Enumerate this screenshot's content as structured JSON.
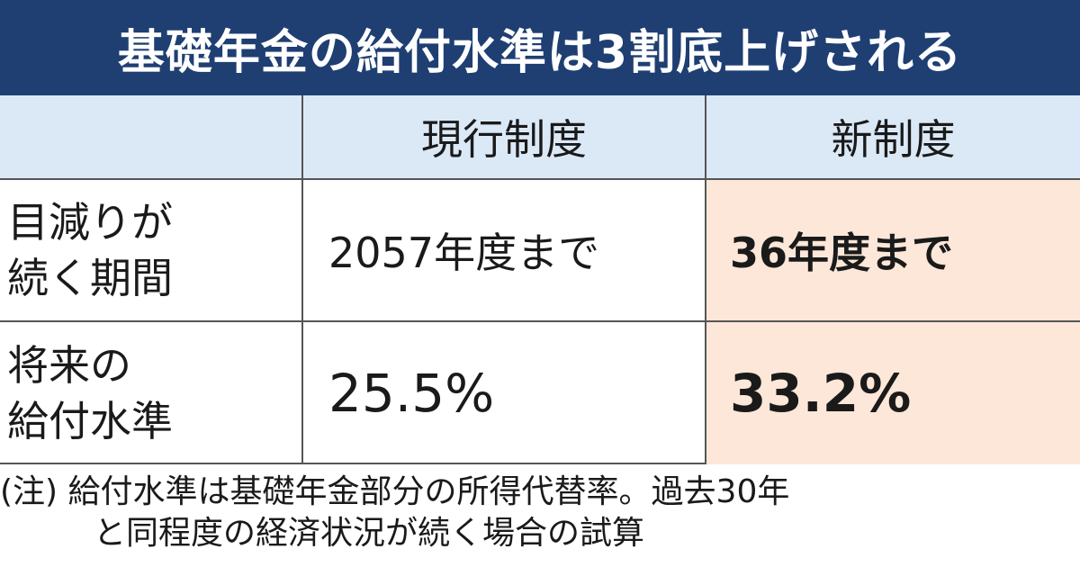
{
  "chart_data": {
    "type": "table",
    "title": "基礎年金の給付水準は3割底上げされる",
    "columns": [
      "",
      "現行制度",
      "新制度"
    ],
    "rows": [
      {
        "label": "目減りが\n続く期間",
        "current": "2057年度まで",
        "new": "36年度まで"
      },
      {
        "label": "将来の\n給付水準",
        "current": "25.5%",
        "new": "33.2%"
      }
    ],
    "note_line1": "(注) 給付水準は基礎年金部分の所得代替率。過去30年",
    "note_line2": "と同程度の経済状況が続く場合の試算"
  },
  "colors": {
    "title_bg": "#1f3f73",
    "header_bg": "#dbe9f7",
    "highlight_bg": "#fce7d8"
  }
}
